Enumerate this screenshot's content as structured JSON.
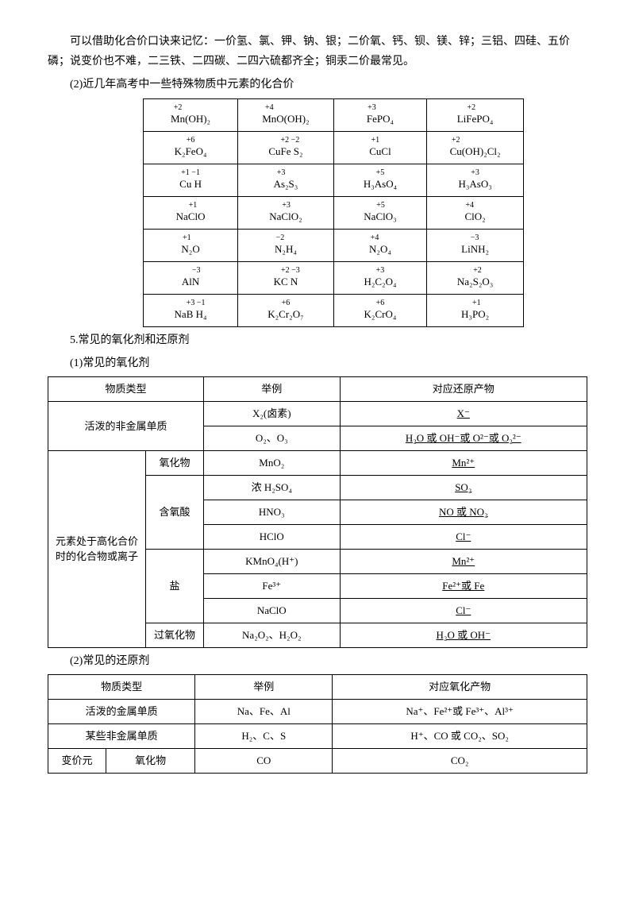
{
  "intro": {
    "p1": "可以借助化合价口诀来记忆：一价氢、氯、钾、钠、银；二价氧、钙、钡、镁、锌；三铝、四硅、五价磷；说变价也不难，二三铁、二四碳、二四六硫都齐全；铜汞二价最常见。",
    "p2": "(2)近几年高考中一些特殊物质中元素的化合价"
  },
  "table1": {
    "rows": [
      [
        {
          "pre": "",
          "ox": "+2",
          "el": "Mn",
          "post": "(OH)₂"
        },
        {
          "pre": "",
          "ox": "+4",
          "el": "Mn",
          "post": "O(OH)₂"
        },
        {
          "pre": "",
          "ox": "+3",
          "el": "Fe",
          "post": "PO₄"
        },
        {
          "pre": "Li",
          "ox": "+2",
          "el": "Fe",
          "post": "PO₄"
        }
      ],
      [
        {
          "pre": "K₂",
          "ox": "+6",
          "el": "Fe",
          "post": "O₄"
        },
        {
          "pre": "Cu",
          "ox": "+2 −2",
          "el": "Fe S",
          "post": "₂"
        },
        {
          "pre": "",
          "ox": "+1",
          "el": "Cu",
          "post": "Cl"
        },
        {
          "pre": "",
          "ox": "+2",
          "el": "Cu",
          "post": "(OH)₂Cl₂"
        }
      ],
      [
        {
          "pre": "",
          "ox": "+1 −1",
          "el": "Cu H",
          "post": ""
        },
        {
          "pre": "",
          "ox": "+3",
          "el": "As₂",
          "post": "S₃"
        },
        {
          "pre": "H₃",
          "ox": "+5",
          "el": "As",
          "post": "O₄"
        },
        {
          "pre": "H₃",
          "ox": "+3",
          "el": "As",
          "post": "O₃"
        }
      ],
      [
        {
          "pre": "Na",
          "ox": "+1",
          "el": "Cl",
          "post": "O"
        },
        {
          "pre": "Na",
          "ox": "+3",
          "el": "Cl",
          "post": "O₂"
        },
        {
          "pre": "Na",
          "ox": "+5",
          "el": "Cl",
          "post": "O₃"
        },
        {
          "pre": "",
          "ox": "+4",
          "el": "Cl",
          "post": "O₂"
        }
      ],
      [
        {
          "pre": "",
          "ox": "+1",
          "el": "N₂",
          "post": "O"
        },
        {
          "pre": "",
          "ox": "−2",
          "el": "N₂",
          "post": "H₄"
        },
        {
          "pre": "",
          "ox": "+4",
          "el": "N₂",
          "post": "O₄"
        },
        {
          "pre": "Li",
          "ox": "−3",
          "el": "N",
          "post": "H₂"
        }
      ],
      [
        {
          "pre": "Al",
          "ox": "−3",
          "el": "N",
          "post": ""
        },
        {
          "pre": "K",
          "ox": "+2 −3",
          "el": "C N",
          "post": ""
        },
        {
          "pre": "H₂",
          "ox": "+3",
          "el": "C₂",
          "post": "O₄"
        },
        {
          "pre": "Na₂",
          "ox": "+2",
          "el": "S₂",
          "post": "O₃"
        }
      ],
      [
        {
          "pre": "Na",
          "ox": "+3 −1",
          "el": "B H",
          "post": "₄"
        },
        {
          "pre": "K₂",
          "ox": "+6",
          "el": "Cr₂",
          "post": "O₇"
        },
        {
          "pre": "K₂",
          "ox": "+6",
          "el": "Cr",
          "post": "O₄"
        },
        {
          "pre": "H₃",
          "ox": "+1",
          "el": "P",
          "post": "O₂"
        }
      ]
    ]
  },
  "section5": "5.常见的氧化剂和还原剂",
  "section5_1": "(1)常见的氧化剂",
  "table2": {
    "headers": [
      "物质类型",
      "举例",
      "对应还原产物"
    ],
    "groups": [
      {
        "cat": "活泼的非金属单质",
        "catspan": 2,
        "rows": [
          {
            "example": "X₂(卤素)",
            "product": "X⁻"
          },
          {
            "example": "O₂、O₃",
            "product": "H₂O 或 OH⁻或 O²⁻或 O₂²⁻"
          }
        ]
      },
      {
        "cat": "元素处于高化合价时的化合物或离子",
        "catspan": 8,
        "subgroups": [
          {
            "sub": "氧化物",
            "subspan": 1,
            "rows": [
              {
                "example": "MnO₂",
                "product": "Mn²⁺"
              }
            ]
          },
          {
            "sub": "含氧酸",
            "subspan": 3,
            "rows": [
              {
                "example": "浓 H₂SO₄",
                "product": "SO₂"
              },
              {
                "example": "HNO₃",
                "product": "NO 或 NO₂"
              },
              {
                "example": "HClO",
                "product": "Cl⁻"
              }
            ]
          },
          {
            "sub": "盐",
            "subspan": 3,
            "rows": [
              {
                "example": "KMnO₄(H⁺)",
                "product": "Mn²⁺"
              },
              {
                "example": "Fe³⁺",
                "product": "Fe²⁺或 Fe"
              },
              {
                "example": "NaClO",
                "product": "Cl⁻"
              }
            ]
          },
          {
            "sub": "过氧化物",
            "subspan": 1,
            "rows": [
              {
                "example": "Na₂O₂、H₂O₂",
                "product": "H₂O 或 OH⁻"
              }
            ]
          }
        ]
      }
    ]
  },
  "section5_2": "(2)常见的还原剂",
  "table3": {
    "headers": [
      "物质类型",
      "举例",
      "对应氧化产物"
    ],
    "rows": [
      {
        "cat": "活泼的金属单质",
        "example": "Na、Fe、Al",
        "product": "Na⁺、Fe²⁺或 Fe³⁺、Al³⁺"
      },
      {
        "cat": "某些非金属单质",
        "example": "H₂、C、S",
        "product": "H⁺、CO 或 CO₂、SO₂"
      },
      {
        "cat1": "变价元",
        "cat2": "氧化物",
        "example": "CO",
        "product": "CO₂"
      }
    ]
  }
}
